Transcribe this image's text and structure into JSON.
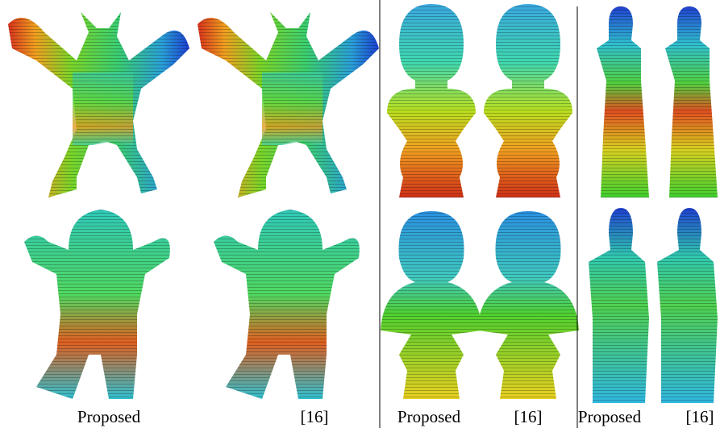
{
  "panels": [
    {
      "captions": [
        "Proposed",
        "[16]"
      ]
    },
    {
      "captions": [
        "Proposed",
        "[16]"
      ]
    },
    {
      "captions": [
        "Proposed",
        "[16]"
      ]
    }
  ]
}
